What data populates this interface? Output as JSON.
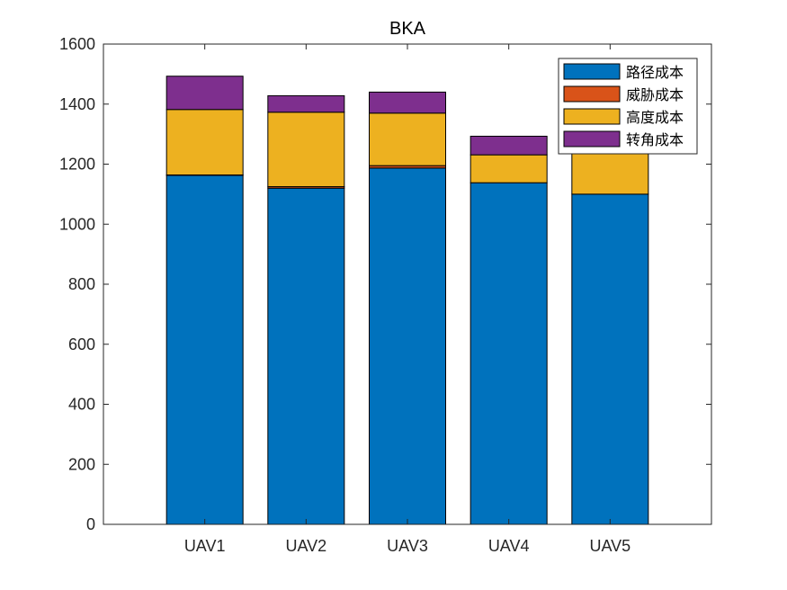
{
  "chart_data": {
    "type": "bar",
    "stacked": true,
    "title": "BKA",
    "xlabel": "",
    "ylabel": "",
    "categories": [
      "UAV1",
      "UAV2",
      "UAV3",
      "UAV4",
      "UAV5"
    ],
    "ylim": [
      0,
      1600
    ],
    "yticks": [
      0,
      200,
      400,
      600,
      800,
      1000,
      1200,
      1400,
      1600
    ],
    "grid": false,
    "legend_position": "top-right",
    "series": [
      {
        "name": "路径成本",
        "color": "#0072BD",
        "values": [
          1163,
          1120,
          1187,
          1138,
          1100
        ]
      },
      {
        "name": "威胁成本",
        "color": "#D95319",
        "values": [
          1,
          5,
          8,
          0,
          0
        ]
      },
      {
        "name": "高度成本",
        "color": "#EDB120",
        "values": [
          218,
          248,
          175,
          93,
          175
        ]
      },
      {
        "name": "转角成本",
        "color": "#7E2F8E",
        "values": [
          111,
          55,
          70,
          62,
          60
        ]
      }
    ]
  }
}
